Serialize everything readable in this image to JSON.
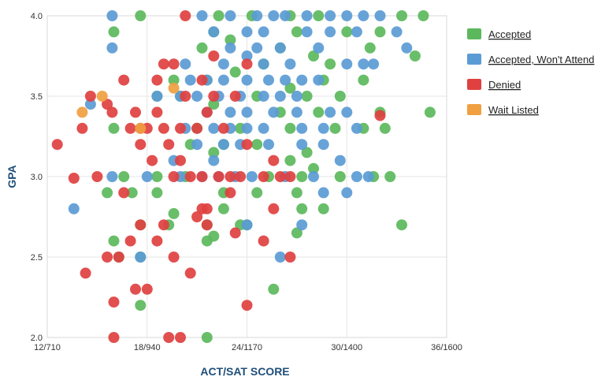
{
  "chart_data": {
    "type": "scatter",
    "xlabel": "ACT/SAT SCORE",
    "ylabel": "GPA",
    "xlim": [
      12,
      36
    ],
    "ylim": [
      2.0,
      4.0
    ],
    "x_ticks": [
      {
        "value": 12,
        "label": "12/710"
      },
      {
        "value": 18,
        "label": "18/940"
      },
      {
        "value": 24,
        "label": "24/1170"
      },
      {
        "value": 30,
        "label": "30/1400"
      },
      {
        "value": 36,
        "label": "36/1600"
      }
    ],
    "y_ticks": [
      {
        "value": 2.0,
        "label": "2.0"
      },
      {
        "value": 2.5,
        "label": "2.5"
      },
      {
        "value": 3.0,
        "label": "3.0"
      },
      {
        "value": 3.5,
        "label": "3.5"
      },
      {
        "value": 4.0,
        "label": "4.0"
      }
    ],
    "grid": true,
    "legend_position": "right",
    "series": [
      {
        "name": "Accepted",
        "color": "#5cb85c",
        "points": [
          [
            17.6,
            4.0
          ],
          [
            22.3,
            4.0
          ],
          [
            24.3,
            4.0
          ],
          [
            26.6,
            4.0
          ],
          [
            28.3,
            4.0
          ],
          [
            33.3,
            4.0
          ],
          [
            34.6,
            4.0
          ],
          [
            16.0,
            3.9
          ],
          [
            22.0,
            3.9
          ],
          [
            23.0,
            3.85
          ],
          [
            27.0,
            3.9
          ],
          [
            30.0,
            3.9
          ],
          [
            32.0,
            3.9
          ],
          [
            26.0,
            3.8
          ],
          [
            28.0,
            3.75
          ],
          [
            31.4,
            3.8
          ],
          [
            34.1,
            3.75
          ],
          [
            19.6,
            3.6
          ],
          [
            21.6,
            3.6
          ],
          [
            24.6,
            3.5
          ],
          [
            26.6,
            3.55
          ],
          [
            28.6,
            3.6
          ],
          [
            31.0,
            3.6
          ],
          [
            18.6,
            3.5
          ],
          [
            27.6,
            3.5
          ],
          [
            29.6,
            3.5
          ],
          [
            22.0,
            3.45
          ],
          [
            35.0,
            3.4
          ],
          [
            26.0,
            3.4
          ],
          [
            28.3,
            3.4
          ],
          [
            32.0,
            3.4
          ],
          [
            21.0,
            3.3
          ],
          [
            23.6,
            3.3
          ],
          [
            26.6,
            3.3
          ],
          [
            29.3,
            3.3
          ],
          [
            31.0,
            3.3
          ],
          [
            32.3,
            3.3
          ],
          [
            16.0,
            3.3
          ],
          [
            20.6,
            3.2
          ],
          [
            22.6,
            3.2
          ],
          [
            24.6,
            3.2
          ],
          [
            27.6,
            3.15
          ],
          [
            22.0,
            3.15
          ],
          [
            26.6,
            3.1
          ],
          [
            28.0,
            3.05
          ],
          [
            18.6,
            3.0
          ],
          [
            20.3,
            3.0
          ],
          [
            25.3,
            3.0
          ],
          [
            27.3,
            3.0
          ],
          [
            29.6,
            3.0
          ],
          [
            31.6,
            3.0
          ],
          [
            32.6,
            3.0
          ],
          [
            16.6,
            3.0
          ],
          [
            15.6,
            2.9
          ],
          [
            17.1,
            2.9
          ],
          [
            18.6,
            2.9
          ],
          [
            22.6,
            2.9
          ],
          [
            24.6,
            2.9
          ],
          [
            27.0,
            2.9
          ],
          [
            19.6,
            2.77
          ],
          [
            22.6,
            2.8
          ],
          [
            27.3,
            2.8
          ],
          [
            28.6,
            2.8
          ],
          [
            17.6,
            2.7
          ],
          [
            19.3,
            2.7
          ],
          [
            21.6,
            2.7
          ],
          [
            23.6,
            2.7
          ],
          [
            24.0,
            2.7
          ],
          [
            27.0,
            2.65
          ],
          [
            33.3,
            2.7
          ],
          [
            16.0,
            2.6
          ],
          [
            21.6,
            2.6
          ],
          [
            22.0,
            2.63
          ],
          [
            17.6,
            2.5
          ],
          [
            16.3,
            2.5
          ],
          [
            25.6,
            2.3
          ],
          [
            17.6,
            2.2
          ],
          [
            21.6,
            2.0
          ],
          [
            20.0,
            3.5
          ],
          [
            21.3,
            3.8
          ],
          [
            25.0,
            3.7
          ],
          [
            23.3,
            3.65
          ],
          [
            29.0,
            3.7
          ]
        ]
      },
      {
        "name": "Accepted, Won't Attend",
        "color": "#5b9bd5",
        "points": [
          [
            15.9,
            4.0
          ],
          [
            21.3,
            4.0
          ],
          [
            23.0,
            4.0
          ],
          [
            24.6,
            4.0
          ],
          [
            25.6,
            4.0
          ],
          [
            26.3,
            4.0
          ],
          [
            27.6,
            4.0
          ],
          [
            29.0,
            4.0
          ],
          [
            30.0,
            4.0
          ],
          [
            31.0,
            4.0
          ],
          [
            32.0,
            4.0
          ],
          [
            22.0,
            3.9
          ],
          [
            24.0,
            3.9
          ],
          [
            25.0,
            3.9
          ],
          [
            27.6,
            3.9
          ],
          [
            29.0,
            3.9
          ],
          [
            30.6,
            3.9
          ],
          [
            33.0,
            3.9
          ],
          [
            15.9,
            3.8
          ],
          [
            23.0,
            3.8
          ],
          [
            24.6,
            3.8
          ],
          [
            26.0,
            3.8
          ],
          [
            28.3,
            3.8
          ],
          [
            31.0,
            3.7
          ],
          [
            33.6,
            3.8
          ],
          [
            20.3,
            3.7
          ],
          [
            22.6,
            3.7
          ],
          [
            25.0,
            3.7
          ],
          [
            26.6,
            3.7
          ],
          [
            30.0,
            3.7
          ],
          [
            31.6,
            3.7
          ],
          [
            24.0,
            3.75
          ],
          [
            20.6,
            3.6
          ],
          [
            21.6,
            3.6
          ],
          [
            22.6,
            3.6
          ],
          [
            24.0,
            3.6
          ],
          [
            25.3,
            3.6
          ],
          [
            26.3,
            3.6
          ],
          [
            27.3,
            3.6
          ],
          [
            28.3,
            3.6
          ],
          [
            18.6,
            3.5
          ],
          [
            20.0,
            3.5
          ],
          [
            21.0,
            3.5
          ],
          [
            22.3,
            3.5
          ],
          [
            23.6,
            3.5
          ],
          [
            25.0,
            3.5
          ],
          [
            26.0,
            3.5
          ],
          [
            27.0,
            3.5
          ],
          [
            14.6,
            3.45
          ],
          [
            21.6,
            3.4
          ],
          [
            23.0,
            3.4
          ],
          [
            24.0,
            3.4
          ],
          [
            25.6,
            3.4
          ],
          [
            27.0,
            3.4
          ],
          [
            29.0,
            3.4
          ],
          [
            30.0,
            3.4
          ],
          [
            20.3,
            3.3
          ],
          [
            22.0,
            3.3
          ],
          [
            23.0,
            3.3
          ],
          [
            24.0,
            3.3
          ],
          [
            25.0,
            3.3
          ],
          [
            27.3,
            3.3
          ],
          [
            28.6,
            3.3
          ],
          [
            30.6,
            3.3
          ],
          [
            21.0,
            3.2
          ],
          [
            22.6,
            3.2
          ],
          [
            23.6,
            3.2
          ],
          [
            25.3,
            3.2
          ],
          [
            27.3,
            3.2
          ],
          [
            28.6,
            3.2
          ],
          [
            19.6,
            3.1
          ],
          [
            22.0,
            3.1
          ],
          [
            29.6,
            3.1
          ],
          [
            15.9,
            3.0
          ],
          [
            18.0,
            3.0
          ],
          [
            20.0,
            3.0
          ],
          [
            21.3,
            3.0
          ],
          [
            22.3,
            3.0
          ],
          [
            23.3,
            3.0
          ],
          [
            24.3,
            3.0
          ],
          [
            26.3,
            3.0
          ],
          [
            28.0,
            3.0
          ],
          [
            30.6,
            3.0
          ],
          [
            31.3,
            3.0
          ],
          [
            13.6,
            2.8
          ],
          [
            28.6,
            2.9
          ],
          [
            30.0,
            2.9
          ],
          [
            24.0,
            2.7
          ],
          [
            27.3,
            2.7
          ],
          [
            26.0,
            2.5
          ],
          [
            17.6,
            2.5
          ]
        ]
      },
      {
        "name": "Denied",
        "color": "#e04040",
        "points": [
          [
            12.6,
            3.2
          ],
          [
            13.6,
            2.99
          ],
          [
            14.1,
            3.3
          ],
          [
            14.6,
            3.5
          ],
          [
            15.0,
            3.0
          ],
          [
            15.6,
            3.45
          ],
          [
            15.9,
            3.4
          ],
          [
            16.6,
            3.6
          ],
          [
            17.0,
            3.3
          ],
          [
            17.3,
            3.4
          ],
          [
            17.6,
            3.2
          ],
          [
            18.0,
            3.3
          ],
          [
            18.3,
            3.1
          ],
          [
            18.6,
            3.6
          ],
          [
            18.6,
            3.4
          ],
          [
            19.0,
            3.7
          ],
          [
            19.0,
            3.3
          ],
          [
            19.3,
            3.2
          ],
          [
            19.6,
            3.7
          ],
          [
            19.6,
            3.0
          ],
          [
            20.0,
            3.3
          ],
          [
            20.3,
            3.5
          ],
          [
            20.6,
            3.0
          ],
          [
            21.0,
            3.3
          ],
          [
            21.3,
            3.0
          ],
          [
            21.6,
            3.4
          ],
          [
            22.0,
            3.5
          ],
          [
            22.3,
            3.0
          ],
          [
            22.6,
            3.3
          ],
          [
            23.0,
            3.0
          ],
          [
            23.3,
            3.5
          ],
          [
            23.6,
            3.0
          ],
          [
            24.0,
            3.2
          ],
          [
            24.0,
            3.7
          ],
          [
            25.0,
            3.0
          ],
          [
            25.6,
            3.1
          ],
          [
            26.0,
            3.0
          ],
          [
            26.6,
            3.0
          ],
          [
            17.6,
            3.3
          ],
          [
            20.0,
            3.1
          ],
          [
            21.6,
            2.8
          ],
          [
            20.3,
            4.0
          ],
          [
            21.3,
            3.6
          ],
          [
            22.0,
            3.75
          ],
          [
            23.0,
            2.9
          ],
          [
            14.3,
            2.4
          ],
          [
            15.6,
            2.5
          ],
          [
            16.3,
            2.5
          ],
          [
            16.6,
            2.9
          ],
          [
            17.0,
            2.6
          ],
          [
            17.3,
            2.3
          ],
          [
            17.6,
            2.7
          ],
          [
            18.0,
            2.3
          ],
          [
            18.6,
            2.6
          ],
          [
            19.0,
            2.7
          ],
          [
            19.3,
            2.0
          ],
          [
            19.6,
            2.5
          ],
          [
            20.0,
            2.0
          ],
          [
            20.6,
            2.4
          ],
          [
            21.0,
            2.75
          ],
          [
            21.3,
            2.8
          ],
          [
            21.6,
            2.7
          ],
          [
            16.0,
            2.22
          ],
          [
            16.0,
            2.0
          ],
          [
            23.3,
            2.65
          ],
          [
            25.0,
            2.6
          ],
          [
            25.6,
            2.8
          ],
          [
            26.6,
            2.5
          ],
          [
            24.0,
            2.2
          ],
          [
            32.0,
            3.38
          ]
        ]
      },
      {
        "name": "Wait Listed",
        "color": "#f0a040",
        "points": [
          [
            14.1,
            3.4
          ],
          [
            15.3,
            3.5
          ],
          [
            19.6,
            3.55
          ],
          [
            17.6,
            3.3
          ]
        ]
      }
    ]
  }
}
